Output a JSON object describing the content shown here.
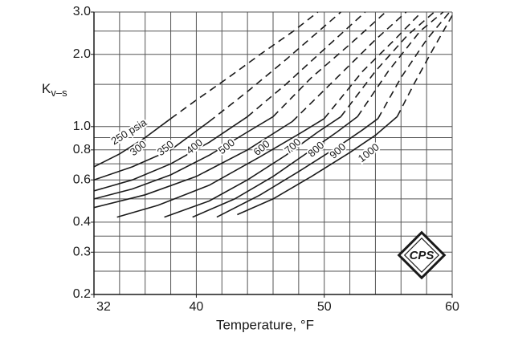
{
  "chart_data": {
    "type": "line",
    "log_y": true,
    "ylabel": {
      "main": "K",
      "sub": "v–s"
    },
    "xlabel": "Temperature, °F",
    "logo_text": "CPS",
    "xlim": [
      32,
      60
    ],
    "ylim": [
      0.2,
      3.0
    ],
    "xticks": [
      32,
      40,
      50,
      60
    ],
    "yticks": [
      0.2,
      0.3,
      0.4,
      0.6,
      0.8,
      {
        "value": 1,
        "label": "1.0"
      },
      {
        "value": 2,
        "label": "2.0"
      },
      {
        "value": 3,
        "label": "3.0"
      }
    ],
    "xgrid": [
      32,
      34,
      36,
      38,
      40,
      42,
      44,
      46,
      48,
      50,
      52,
      54,
      56,
      58,
      60
    ],
    "ygrid": [
      0.2,
      0.25,
      0.3,
      0.35,
      0.4,
      0.5,
      0.6,
      0.7,
      0.8,
      0.9,
      1,
      1.5,
      2,
      2.5,
      3
    ],
    "color": "#1a1a1a",
    "series": [
      {
        "name": "250 psia",
        "dash_from": 3,
        "x": [
          32,
          34,
          36,
          38,
          40,
          42.5,
          45,
          47.6,
          49.5
        ],
        "values": [
          0.68,
          0.77,
          0.9,
          1.08,
          1.29,
          1.6,
          2.0,
          2.5,
          3.0
        ]
      },
      {
        "name": "300",
        "dash_from": 3,
        "x": [
          32,
          35,
          38,
          41,
          44,
          47,
          51.3
        ],
        "values": [
          0.6,
          0.68,
          0.8,
          1.05,
          1.4,
          1.9,
          3.0
        ]
      },
      {
        "name": "350",
        "dash_from": 4,
        "x": [
          32,
          35,
          38,
          41,
          44,
          47,
          50,
          53.2
        ],
        "values": [
          0.54,
          0.6,
          0.7,
          0.86,
          1.1,
          1.5,
          2.1,
          3.0
        ]
      },
      {
        "name": "400",
        "dash_from": 5,
        "x": [
          32,
          35,
          38,
          41,
          44,
          46,
          49,
          52,
          54.8
        ],
        "values": [
          0.5,
          0.55,
          0.63,
          0.76,
          0.95,
          1.1,
          1.6,
          2.2,
          3.0
        ]
      },
      {
        "name": "500",
        "dash_from": 4,
        "x": [
          32,
          36,
          40,
          44,
          47.5,
          51,
          54,
          56.4
        ],
        "values": [
          0.46,
          0.52,
          0.62,
          0.8,
          1.05,
          1.6,
          2.3,
          3.0
        ]
      },
      {
        "name": "600",
        "dash_from": 5,
        "x": [
          33.8,
          37,
          41,
          45,
          48,
          50,
          53,
          55.5,
          57.6
        ],
        "values": [
          0.42,
          0.47,
          0.57,
          0.75,
          0.93,
          1.08,
          1.7,
          2.3,
          3.0
        ]
      },
      {
        "name": "700",
        "dash_from": 5,
        "x": [
          37.5,
          41,
          44,
          47,
          49.5,
          51.3,
          54,
          56.5,
          58.6
        ],
        "values": [
          0.42,
          0.49,
          0.6,
          0.76,
          0.95,
          1.1,
          1.7,
          2.4,
          3.0
        ]
      },
      {
        "name": "800",
        "dash_from": 5,
        "x": [
          39.7,
          43,
          46,
          49,
          51,
          52.6,
          55,
          57.5,
          59.3
        ],
        "values": [
          0.42,
          0.5,
          0.62,
          0.8,
          0.95,
          1.1,
          1.7,
          2.5,
          3.0
        ]
      },
      {
        "name": "900",
        "dash_from": 5,
        "x": [
          41.6,
          45,
          48,
          51,
          53,
          54.2,
          56,
          58,
          59.8
        ],
        "values": [
          0.42,
          0.52,
          0.65,
          0.82,
          0.97,
          1.08,
          1.6,
          2.3,
          3.0
        ]
      },
      {
        "name": "1000",
        "dash_from": 5,
        "x": [
          43.2,
          46,
          49,
          52,
          54,
          55.7,
          57,
          58.5,
          60
        ],
        "values": [
          0.43,
          0.5,
          0.62,
          0.78,
          0.92,
          1.1,
          1.5,
          2.1,
          2.9
        ]
      }
    ]
  }
}
